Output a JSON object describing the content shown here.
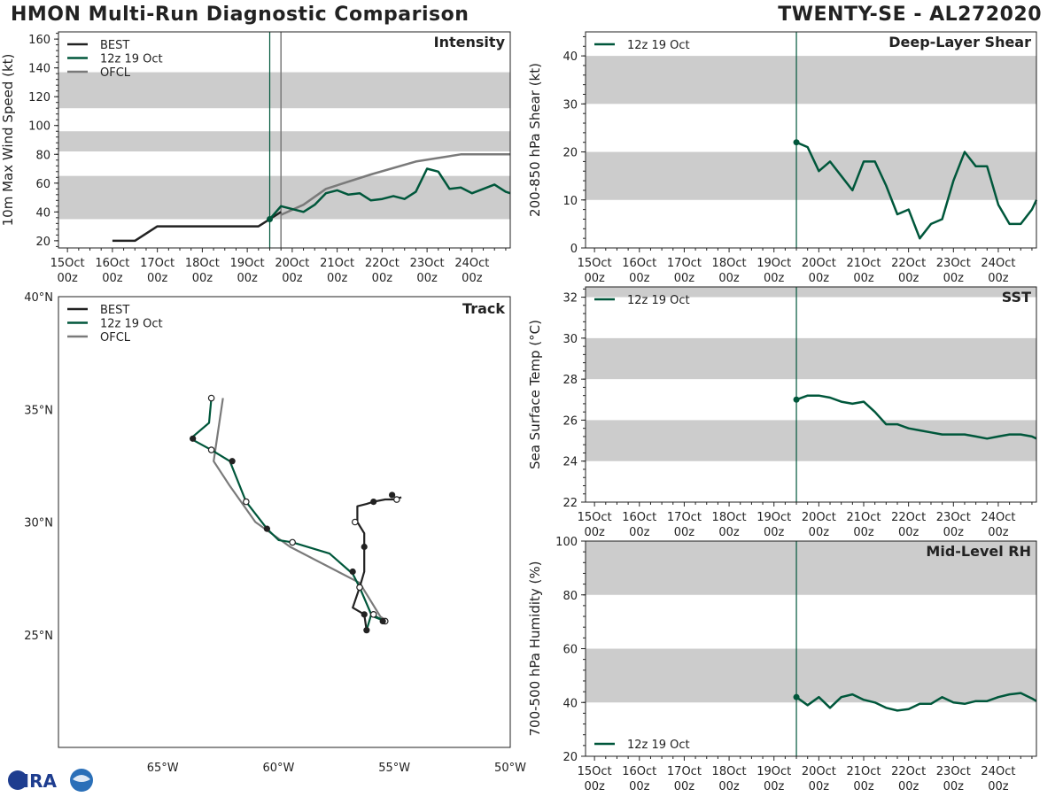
{
  "title": "HMON Multi-Run Diagnostic Comparison",
  "storm": "TWENTY-SE - AL272020",
  "logo_text": "CIRA",
  "colors": {
    "best": "#222222",
    "run": "#00573b",
    "ofcl": "#7a7a7a",
    "band": "#cccccc",
    "init_line": "#00573b"
  },
  "time_ticks": [
    [
      "15Oct",
      "00z"
    ],
    [
      "16Oct",
      "00z"
    ],
    [
      "17Oct",
      "00z"
    ],
    [
      "18Oct",
      "00z"
    ],
    [
      "19Oct",
      "00z"
    ],
    [
      "20Oct",
      "00z"
    ],
    [
      "21Oct",
      "00z"
    ],
    [
      "22Oct",
      "00z"
    ],
    [
      "23Oct",
      "00z"
    ],
    [
      "24Oct",
      "00z"
    ]
  ],
  "chart_data": [
    {
      "id": "intensity",
      "type": "line",
      "title": "Intensity",
      "ylabel": "10m Max Wind Speed (kt)",
      "x_units": "days since 15Oct 00z",
      "xlim": [
        -0.2,
        9.85
      ],
      "ylim": [
        15,
        165
      ],
      "yticks": [
        20,
        40,
        60,
        80,
        100,
        120,
        140,
        160
      ],
      "bands": [
        [
          35,
          65
        ],
        [
          82,
          96
        ],
        [
          112,
          137
        ]
      ],
      "init_time": 4.5,
      "ofcl_time": 4.75,
      "legend": [
        "BEST",
        "12z 19 Oct",
        "OFCL"
      ],
      "series": [
        {
          "name": "BEST",
          "key": "best",
          "x": [
            1.0,
            1.5,
            2.0,
            2.5,
            3.0,
            3.5,
            4.0,
            4.25,
            4.5,
            4.75
          ],
          "y": [
            20,
            20,
            30,
            30,
            30,
            30,
            30,
            30,
            35,
            40
          ]
        },
        {
          "name": "12z 19 Oct",
          "key": "run",
          "x": [
            4.5,
            4.75,
            5.0,
            5.25,
            5.5,
            5.75,
            6.0,
            6.25,
            6.5,
            6.75,
            7.0,
            7.25,
            7.5,
            7.75,
            8.0,
            8.25,
            8.5,
            8.75,
            9.0,
            9.25,
            9.5,
            9.75,
            9.85
          ],
          "y": [
            35,
            44,
            42,
            40,
            45,
            53,
            55,
            52,
            53,
            48,
            49,
            51,
            49,
            54,
            70,
            68,
            56,
            57,
            53,
            56,
            59,
            54,
            53
          ]
        },
        {
          "name": "OFCL",
          "key": "ofcl",
          "x": [
            4.75,
            5.25,
            5.75,
            6.75,
            7.75,
            8.75,
            9.85
          ],
          "y": [
            38,
            45,
            56,
            66,
            75,
            80,
            80
          ]
        }
      ],
      "best_markers": [
        4.5
      ]
    },
    {
      "id": "shear",
      "type": "line",
      "title": "Deep-Layer Shear",
      "ylabel": "200-850 hPa Shear (kt)",
      "x_units": "days since 15Oct 00z",
      "xlim": [
        -0.2,
        9.85
      ],
      "ylim": [
        0,
        45
      ],
      "yticks": [
        0,
        10,
        20,
        30,
        40
      ],
      "bands": [
        [
          10,
          20
        ],
        [
          30,
          40
        ]
      ],
      "init_time": 4.5,
      "legend": [
        "12z 19 Oct"
      ],
      "series": [
        {
          "name": "12z 19 Oct",
          "key": "run",
          "x": [
            4.5,
            4.75,
            5.0,
            5.25,
            5.5,
            5.75,
            6.0,
            6.25,
            6.5,
            6.75,
            7.0,
            7.25,
            7.5,
            7.75,
            8.0,
            8.25,
            8.5,
            8.75,
            9.0,
            9.25,
            9.5,
            9.75,
            9.85
          ],
          "y": [
            22,
            21,
            16,
            18,
            15,
            12,
            18,
            18,
            13,
            7,
            8,
            2,
            5,
            6,
            14,
            20,
            17,
            17,
            9,
            5,
            5,
            8,
            10
          ]
        }
      ]
    },
    {
      "id": "sst",
      "type": "line",
      "title": "SST",
      "ylabel": "Sea Surface Temp (°C)",
      "x_units": "days since 15Oct 00z",
      "xlim": [
        -0.2,
        9.85
      ],
      "ylim": [
        22,
        32.5
      ],
      "yticks": [
        22,
        24,
        26,
        28,
        30,
        32
      ],
      "bands": [
        [
          24,
          26
        ],
        [
          28,
          30
        ],
        [
          32,
          32.5
        ]
      ],
      "init_time": 4.5,
      "legend": [
        "12z 19 Oct"
      ],
      "series": [
        {
          "name": "12z 19 Oct",
          "key": "run",
          "x": [
            4.5,
            4.75,
            5.0,
            5.25,
            5.5,
            5.75,
            6.0,
            6.25,
            6.5,
            6.75,
            7.0,
            7.25,
            7.5,
            7.75,
            8.0,
            8.25,
            8.5,
            8.75,
            9.0,
            9.25,
            9.5,
            9.75,
            9.85
          ],
          "y": [
            27.0,
            27.2,
            27.2,
            27.1,
            26.9,
            26.8,
            26.9,
            26.4,
            25.8,
            25.8,
            25.6,
            25.5,
            25.4,
            25.3,
            25.3,
            25.3,
            25.2,
            25.1,
            25.2,
            25.3,
            25.3,
            25.2,
            25.1
          ]
        }
      ]
    },
    {
      "id": "rh",
      "type": "line",
      "title": "Mid-Level RH",
      "ylabel": "700-500 hPa Humidity (%)",
      "x_units": "days since 15Oct 00z",
      "xlim": [
        -0.2,
        9.85
      ],
      "ylim": [
        20,
        100
      ],
      "yticks": [
        20,
        40,
        60,
        80,
        100
      ],
      "bands": [
        [
          40,
          60
        ],
        [
          80,
          100
        ]
      ],
      "init_time": 4.5,
      "legend": [
        "12z 19 Oct"
      ],
      "series": [
        {
          "name": "12z 19 Oct",
          "key": "run",
          "x": [
            4.5,
            4.75,
            5.0,
            5.25,
            5.5,
            5.75,
            6.0,
            6.25,
            6.5,
            6.75,
            7.0,
            7.25,
            7.5,
            7.75,
            8.0,
            8.25,
            8.5,
            8.75,
            9.0,
            9.25,
            9.5,
            9.75,
            9.85
          ],
          "y": [
            42,
            39,
            42,
            38,
            42,
            43,
            41,
            40,
            38,
            37,
            37.5,
            39.5,
            39.5,
            42,
            40,
            39.5,
            40.5,
            40.5,
            42,
            43,
            43.5,
            41.5,
            40.5
          ]
        }
      ]
    },
    {
      "id": "track",
      "type": "line",
      "title": "Track",
      "x_units": "degrees longitude (negative = W)",
      "y_units": "degrees latitude (N)",
      "xlim": [
        -69.5,
        -50
      ],
      "ylim": [
        20,
        40
      ],
      "xticks": [
        -65,
        -60,
        -55,
        -50
      ],
      "xtick_labels": [
        "65°W",
        "60°W",
        "55°W",
        "50°W"
      ],
      "yticks": [
        25,
        30,
        35,
        40
      ],
      "ytick_labels": [
        "25°N",
        "30°N",
        "35°N",
        "40°N"
      ],
      "legend": [
        "BEST",
        "12z 19 Oct",
        "OFCL"
      ],
      "series": [
        {
          "name": "BEST",
          "key": "best",
          "lon": [
            -54.7,
            -55.0,
            -55.4,
            -55.9,
            -56.2,
            -56.6,
            -56.6,
            -56.3,
            -56.3,
            -56.3,
            -56.5,
            -56.8,
            -56.3,
            -56.2
          ],
          "lat": [
            31.1,
            31.0,
            31.0,
            30.9,
            30.8,
            30.7,
            30.0,
            29.5,
            28.9,
            27.8,
            27.1,
            26.2,
            25.9,
            25.2
          ],
          "filled_markers": [
            [
              -55.1,
              31.2
            ],
            [
              -55.9,
              30.9
            ],
            [
              -56.3,
              28.9
            ],
            [
              -56.8,
              27.8
            ],
            [
              -56.3,
              25.9
            ],
            [
              -56.2,
              25.2
            ]
          ],
          "open_markers": [
            [
              -54.9,
              31.0
            ],
            [
              -56.7,
              30.0
            ]
          ]
        },
        {
          "name": "12z 19 Oct",
          "key": "run",
          "lon": [
            -56.2,
            -56.0,
            -55.9,
            -55.4,
            -55.4,
            -56.0,
            -56.5,
            -56.8,
            -57.8,
            -59.4,
            -60.0,
            -60.5,
            -61.4,
            -62.1,
            -62.9,
            -63.8,
            -63.0,
            -62.9
          ],
          "lat": [
            25.2,
            25.9,
            25.8,
            25.6,
            25.6,
            25.9,
            27.1,
            27.7,
            28.6,
            29.1,
            29.2,
            29.7,
            30.9,
            32.7,
            33.2,
            33.7,
            34.4,
            35.5
          ],
          "filled_markers": [
            [
              -55.5,
              25.6
            ],
            [
              -60.5,
              29.7
            ],
            [
              -62.0,
              32.7
            ],
            [
              -63.7,
              33.7
            ]
          ],
          "open_markers": [
            [
              -55.9,
              25.9
            ],
            [
              -56.5,
              27.1
            ],
            [
              -59.4,
              29.1
            ],
            [
              -61.4,
              30.9
            ],
            [
              -62.9,
              33.2
            ],
            [
              -62.9,
              35.5
            ]
          ]
        },
        {
          "name": "OFCL",
          "key": "ofcl",
          "lon": [
            -55.3,
            -55.6,
            -56.5,
            -58.0,
            -59.5,
            -61.0,
            -62.1,
            -62.8,
            -62.4
          ],
          "lat": [
            25.6,
            25.8,
            27.3,
            28.1,
            28.9,
            30.0,
            31.6,
            32.7,
            35.5
          ],
          "filled_markers": [],
          "open_markers": [
            [
              -55.4,
              25.6
            ]
          ]
        }
      ]
    }
  ]
}
